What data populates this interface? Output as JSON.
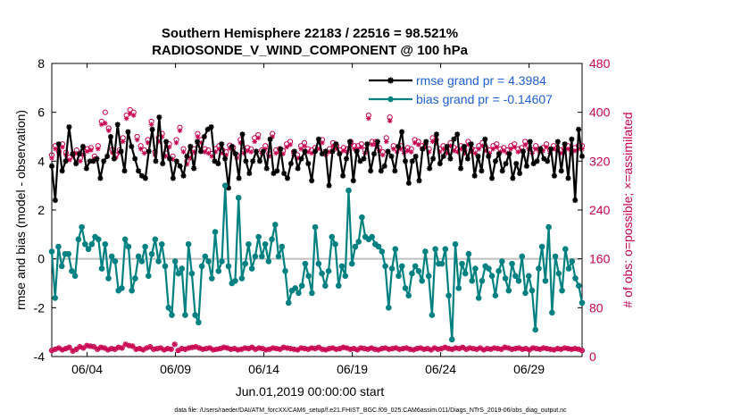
{
  "title_line1": "Southern Hemisphere 22183 / 22516 = 98.521%",
  "title_line2": "RADIOSONDE_V_WIND_COMPONENT @ 100 hPa",
  "xlabel": "Jun.01,2019 00:00:00 start",
  "ylabel_left": "rmse and bias (model - observation)",
  "ylabel_right": "# of obs: o=possible; ×=assimilated",
  "footnote": "data file: /Users/raeder/DAI/ATM_forcXX/CAM6_setup/f.e21.FHIST_BGC.f09_025.CAM6assim.011/Diags_NTrS_2019-06/obs_diag_output.nc",
  "colors": {
    "rmse": "#000000",
    "bias": "#008080",
    "obs": "#c8004f",
    "zero": "#bfbfbf",
    "legend_text": "#1f5fd6"
  },
  "chart_data": {
    "type": "line",
    "title": "Southern Hemisphere 22183 / 22516 = 98.521%",
    "xlabel": "Jun.01,2019 00:00:00 start",
    "ylabel": "rmse and bias (model - observation)",
    "ylim": [
      -4,
      8
    ],
    "y2lim": [
      0,
      480
    ],
    "xlim": [
      0,
      30
    ],
    "x_ticks": [
      2,
      7,
      12,
      17,
      22,
      27
    ],
    "x_tick_labels": [
      "06/04",
      "06/09",
      "06/14",
      "06/19",
      "06/24",
      "06/29"
    ],
    "y_ticks": [
      -4,
      -2,
      0,
      2,
      4,
      6,
      8
    ],
    "y_tick_labels": [
      "-4",
      "-2",
      "0",
      "2",
      "4",
      "6",
      "8"
    ],
    "y2_ticks": [
      0,
      80,
      160,
      240,
      320,
      400,
      480
    ],
    "y2_tick_labels": [
      "0",
      "80",
      "160",
      "240",
      "320",
      "400",
      "480"
    ],
    "series": [
      {
        "name": "rmse",
        "legend": "rmse grand pr = 4.3984",
        "values": [
          3.8,
          2.4,
          4.7,
          3.6,
          4.0,
          5.4,
          4.3,
          3.9,
          4.3,
          4.6,
          3.7,
          4.0,
          4.0,
          4.1,
          3.3,
          4.0,
          4.2,
          5.0,
          4.1,
          5.5,
          4.4,
          3.6,
          5.2,
          4.6,
          4.1,
          3.6,
          3.4,
          3.3,
          4.4,
          5.3,
          4.0,
          5.8,
          3.9,
          4.8,
          4.1,
          3.3,
          4.0,
          3.8,
          3.4,
          4.2,
          4.6,
          3.7,
          4.8,
          4.4,
          5.0,
          5.3,
          5.4,
          4.0,
          3.9,
          4.7,
          4.1,
          2.9,
          4.6,
          4.3,
          3.3,
          5.1,
          4.0,
          3.5,
          4.0,
          4.4,
          4.0,
          4.4,
          3.7,
          4.9,
          3.5,
          3.6,
          4.5,
          3.5,
          3.3,
          3.9,
          4.4,
          3.7,
          4.1,
          4.4,
          3.9,
          3.2,
          4.4,
          4.9,
          4.3,
          4.4,
          3.0,
          4.4,
          4.7,
          4.3,
          3.4,
          4.1,
          4.8,
          3.2,
          4.4,
          4.0,
          4.1,
          4.7,
          3.6,
          4.3,
          4.8,
          3.6,
          3.8,
          4.4,
          4.2,
          3.6,
          4.6,
          5.2,
          4.0,
          3.1,
          4.0,
          4.2,
          3.2,
          4.5,
          4.8,
          3.7,
          4.1,
          5.1,
          3.9,
          4.2,
          4.6,
          4.1,
          4.9,
          5.1,
          3.7,
          4.6,
          4.1,
          4.7,
          3.4,
          4.2,
          3.6,
          4.9,
          4.2,
          3.3,
          4.0,
          4.3,
          3.6,
          3.9,
          4.3,
          3.3,
          3.9,
          3.5,
          4.4,
          3.8,
          4.8,
          3.9,
          4.0,
          4.5,
          4.1,
          4.0,
          4.5,
          3.4,
          4.8,
          3.6,
          4.7,
          3.3,
          4.9,
          2.4,
          5.3,
          4.2
        ]
      },
      {
        "name": "bias",
        "legend": "bias grand pr = -0.14607",
        "values": [
          0.3,
          -1.6,
          0.5,
          -0.3,
          0.2,
          0.2,
          -0.5,
          -0.7,
          0.8,
          1.3,
          0.6,
          0.4,
          0.6,
          0.9,
          0.8,
          -0.4,
          0.6,
          -0.8,
          0.1,
          -0.1,
          -1.3,
          -1.2,
          0.8,
          0.5,
          -1.3,
          -0.8,
          0.1,
          -0.1,
          0.5,
          -0.7,
          0.2,
          0.8,
          -0.1,
          0.6,
          -0.3,
          -2.0,
          -2.3,
          -0.1,
          -0.6,
          -0.4,
          -2.3,
          0.6,
          -0.6,
          -2.3,
          -2.6,
          -0.3,
          0.1,
          -0.1,
          -0.8,
          1.1,
          -0.5,
          -0.1,
          3.0,
          -0.3,
          -1.0,
          -0.9,
          2.5,
          -0.8,
          -0.2,
          0.6,
          -0.4,
          0.1,
          0.9,
          0.1,
          0.6,
          -0.1,
          0.8,
          1.4,
          0.1,
          0.5,
          -0.5,
          -1.8,
          -1.3,
          -1.2,
          -1.4,
          -1.1,
          -0.2,
          -0.7,
          -1.4,
          1.3,
          -0.2,
          -0.6,
          -1.1,
          -0.5,
          0.9,
          0.6,
          -1.1,
          -0.3,
          -0.7,
          2.8,
          -0.2,
          0.5,
          0.7,
          1.7,
          0.9,
          0.8,
          0.9,
          0.6,
          0.5,
          0.3,
          -0.3,
          -2.0,
          -0.4,
          0.4,
          -0.7,
          -0.3,
          -1.2,
          -1.5,
          -0.6,
          -0.3,
          -0.5,
          -0.9,
          0.3,
          -0.7,
          -2.3,
          0.4,
          -0.2,
          -0.2,
          0.4,
          -1.5,
          -3.3,
          0.6,
          -1.2,
          -0.2,
          -0.6,
          0.2,
          -0.9,
          -0.4,
          -1.6,
          -0.9,
          -0.3,
          -0.4,
          -0.7,
          -1.5,
          -0.5,
          -0.1,
          -0.8,
          -1.3,
          -0.2,
          -0.7,
          -0.9,
          0.1,
          -1.4,
          -0.7,
          -1.3,
          -2.9,
          -0.4,
          0.5,
          -0.9,
          1.3,
          -2.2,
          0.1,
          -0.6,
          -1.3,
          0.4,
          -0.4,
          -0.1,
          -0.8,
          -1.1,
          -1.8
        ]
      },
      {
        "name": "obs_possible",
        "values": [
          330,
          345,
          336,
          348,
          334,
          326,
          332,
          338,
          325,
          336,
          340,
          342,
          328,
          345,
          385,
          400,
          374,
          339,
          330,
          338,
          358,
          395,
          404,
          400,
          360,
          345,
          338,
          355,
          385,
          335,
          358,
          365,
          333,
          348,
          328,
          355,
          375,
          340,
          320,
          330,
          340,
          365,
          355,
          340,
          338,
          332,
          340,
          345,
          338,
          335,
          346,
          342,
          330,
          355,
          338,
          342,
          340,
          358,
          363,
          338,
          345,
          332,
          365,
          338,
          340,
          337,
          348,
          352,
          335,
          330,
          345,
          350,
          340,
          338,
          342,
          345,
          355,
          335,
          340,
          350,
          345,
          338,
          342,
          340,
          352,
          345,
          345,
          348,
          338,
          395,
          352,
          352,
          342,
          335,
          358,
          392,
          345,
          340,
          345,
          338,
          342,
          340,
          355,
          352,
          345,
          348,
          340,
          358,
          355,
          340,
          345,
          338,
          350,
          342,
          340,
          345,
          338,
          352,
          340,
          338,
          345,
          350,
          342,
          338,
          345,
          348,
          340,
          342,
          338,
          345,
          348,
          340,
          342,
          352,
          345,
          338,
          345,
          340,
          342,
          348,
          338,
          345,
          342,
          338,
          340,
          345,
          338,
          342,
          345,
          345
        ]
      },
      {
        "name": "obs_assimilated",
        "values": [
          325,
          340,
          332,
          343,
          330,
          322,
          328,
          333,
          320,
          330,
          336,
          338,
          324,
          340,
          380,
          382,
          370,
          334,
          326,
          334,
          352,
          390,
          398,
          395,
          355,
          340,
          333,
          350,
          380,
          330,
          352,
          360,
          328,
          343,
          323,
          350,
          370,
          335,
          315,
          325,
          335,
          360,
          350,
          335,
          333,
          328,
          335,
          340,
          333,
          330,
          341,
          337,
          325,
          350,
          333,
          337,
          335,
          352,
          358,
          333,
          340,
          328,
          360,
          333,
          335,
          332,
          343,
          347,
          330,
          325,
          340,
          345,
          335,
          333,
          337,
          340,
          350,
          330,
          335,
          345,
          340,
          333,
          337,
          335,
          347,
          340,
          340,
          343,
          333,
          390,
          347,
          347,
          337,
          330,
          352,
          386,
          340,
          335,
          340,
          333,
          337,
          335,
          350,
          347,
          340,
          343,
          335,
          352,
          350,
          335,
          340,
          333,
          345,
          337,
          335,
          340,
          333,
          347,
          335,
          333,
          340,
          345,
          337,
          333,
          340,
          343,
          335,
          337,
          333,
          340,
          343,
          335,
          337,
          347,
          340,
          333,
          340,
          335,
          337,
          343,
          333,
          340,
          337,
          333,
          335,
          340,
          333,
          337,
          340,
          340
        ]
      },
      {
        "name": "obs_possible_low",
        "values": [
          10,
          12,
          14,
          11,
          13,
          15,
          9,
          12,
          16,
          14,
          18,
          17,
          16,
          12,
          15,
          14,
          11,
          13,
          12,
          15,
          14,
          20,
          18,
          17,
          12,
          13,
          11,
          14,
          16,
          12,
          13,
          14,
          11,
          13,
          12,
          20,
          10,
          13,
          12,
          14,
          15,
          16,
          14,
          12,
          13,
          14,
          11,
          12,
          13,
          15,
          14,
          12,
          13,
          11,
          12,
          14,
          13,
          15,
          12,
          14,
          13,
          11,
          12,
          14,
          13,
          12,
          15,
          14,
          13,
          12,
          11,
          14,
          13,
          12,
          14,
          13,
          15,
          12,
          11,
          13,
          14,
          12,
          13,
          15,
          14,
          12,
          13,
          11,
          14,
          13,
          12,
          14,
          12,
          11,
          13,
          14,
          12,
          13,
          14,
          12,
          13,
          14,
          12,
          11,
          13,
          14,
          12,
          13,
          11,
          14,
          12,
          13,
          15,
          13,
          12,
          14,
          13,
          15,
          12,
          14,
          13,
          12,
          14,
          11,
          13,
          12,
          14,
          13,
          12,
          15,
          14,
          12,
          13,
          14,
          12,
          13,
          11,
          14,
          13,
          12,
          14,
          13,
          12,
          11,
          13,
          12,
          14,
          13,
          12,
          13,
          12,
          10
        ]
      },
      {
        "name": "obs_assimilated_low",
        "values": [
          10,
          12,
          14,
          11,
          13,
          15,
          9,
          12,
          16,
          14,
          18,
          17,
          16,
          12,
          15,
          14,
          11,
          13,
          12,
          15,
          14,
          20,
          18,
          17,
          12,
          13,
          11,
          14,
          16,
          12,
          13,
          14,
          11,
          13,
          12,
          20,
          10,
          13,
          12,
          14,
          15,
          16,
          14,
          12,
          13,
          14,
          11,
          12,
          13,
          15,
          14,
          12,
          13,
          11,
          12,
          14,
          13,
          15,
          12,
          14,
          13,
          11,
          12,
          14,
          13,
          12,
          15,
          14,
          13,
          12,
          11,
          14,
          13,
          12,
          14,
          13,
          15,
          12,
          11,
          13,
          14,
          12,
          13,
          15,
          14,
          12,
          13,
          11,
          14,
          13,
          12,
          14,
          12,
          11,
          13,
          14,
          12,
          13,
          14,
          12,
          13,
          14,
          12,
          11,
          13,
          14,
          12,
          13,
          11,
          14,
          12,
          13,
          15,
          13,
          12,
          14,
          13,
          15,
          12,
          14,
          13,
          12,
          14,
          11,
          13,
          12,
          14,
          13,
          12,
          15,
          14,
          12,
          13,
          14,
          12,
          13,
          11,
          14,
          13,
          12,
          14,
          13,
          12,
          11,
          13,
          12,
          14,
          13,
          12,
          13,
          12,
          10
        ]
      }
    ]
  }
}
